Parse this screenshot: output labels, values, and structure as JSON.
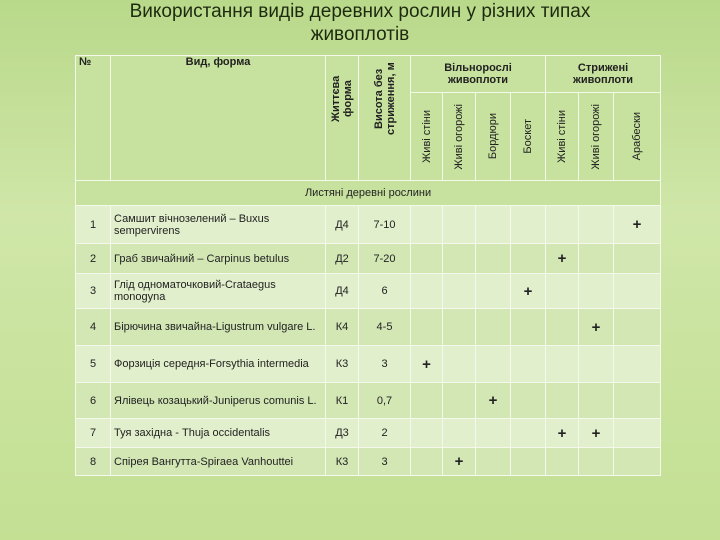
{
  "header": {
    "title": "Використання видів деревних рослин у різних типах живоплотів"
  },
  "table": {
    "columns": {
      "number": "№",
      "species": "Вид, форма",
      "life_form": "Життєва форма",
      "height": "Висота без стриження, м",
      "groups": [
        {
          "title": "Вільнорослі живоплоти",
          "subcolumns": [
            "Живі стіни",
            "Живі огорожі",
            "Бордюри",
            "Боскет"
          ]
        },
        {
          "title": "Стрижені живоплоти",
          "subcolumns": [
            "Живі стіни",
            "Живі огорожі",
            "Арабески"
          ]
        }
      ]
    },
    "section": "Листяні деревні рослини",
    "rows": [
      {
        "number": "1",
        "species": "Самшит вічнозелений – Buxus sempervirens",
        "life_form": "Д4",
        "height": "7-10",
        "marks": [
          null,
          null,
          null,
          null,
          null,
          null,
          "+"
        ]
      },
      {
        "number": "2",
        "species": "Граб звичайний – Carpinus betulus",
        "life_form": "Д2",
        "height": "7-20",
        "marks": [
          null,
          null,
          null,
          null,
          "+",
          null,
          null
        ]
      },
      {
        "number": "3",
        "species": "Глід одноматочковий-Crataegus monogyna",
        "life_form": "Д4",
        "height": "6",
        "marks": [
          null,
          null,
          null,
          "+",
          null,
          null,
          null
        ]
      },
      {
        "number": "4",
        "species": "Бірючина звичайна-Ligustrum vulgare L.",
        "life_form": "К4",
        "height": "4-5",
        "marks": [
          null,
          null,
          null,
          null,
          null,
          "+",
          null
        ]
      },
      {
        "number": "5",
        "species": "Форзиція середня-Forsythia intermedia",
        "life_form": "К3",
        "height": "3",
        "marks": [
          "+",
          null,
          null,
          null,
          null,
          null,
          null
        ]
      },
      {
        "number": "6",
        "species": "Ялівець козацький-Juniperus comunis L.",
        "life_form": "К1",
        "height": "0,7",
        "marks": [
          null,
          null,
          "+",
          null,
          null,
          null,
          null
        ]
      },
      {
        "number": "7",
        "species": "Туя західна - Thuja occidentalis",
        "life_form": "Д3",
        "height": "2",
        "marks": [
          null,
          null,
          null,
          null,
          "+",
          "+",
          null
        ]
      },
      {
        "number": "8",
        "species": "Спірея Вангутта-Spiraea Vanhouttei",
        "life_form": "К3",
        "height": "3",
        "marks": [
          null,
          "+",
          null,
          null,
          null,
          null,
          null
        ]
      }
    ]
  }
}
